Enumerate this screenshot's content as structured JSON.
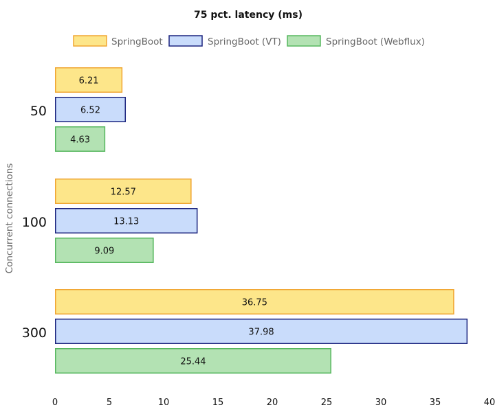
{
  "chart_data": {
    "type": "bar",
    "orientation": "horizontal",
    "title": "75 pct. latency (ms)",
    "ylabel": "Concurrent connections",
    "xlabel": "",
    "categories": [
      "50",
      "100",
      "300"
    ],
    "series": [
      {
        "name": "SpringBoot",
        "values": [
          6.21,
          12.57,
          36.75
        ],
        "fill": "#fde68a",
        "stroke": "#f0a531"
      },
      {
        "name": "SpringBoot (VT)",
        "values": [
          6.52,
          13.13,
          37.98
        ],
        "fill": "#c9dcfb",
        "stroke": "#1a237e"
      },
      {
        "name": "SpringBoot (Webflux)",
        "values": [
          4.63,
          9.09,
          25.44
        ],
        "fill": "#b3e2b3",
        "stroke": "#56b75e"
      }
    ],
    "xlim": [
      0,
      40
    ],
    "xticks": [
      "0",
      "5",
      "10",
      "15",
      "20",
      "25",
      "30",
      "35",
      "40"
    ],
    "legend_position": "top",
    "grid": false
  }
}
